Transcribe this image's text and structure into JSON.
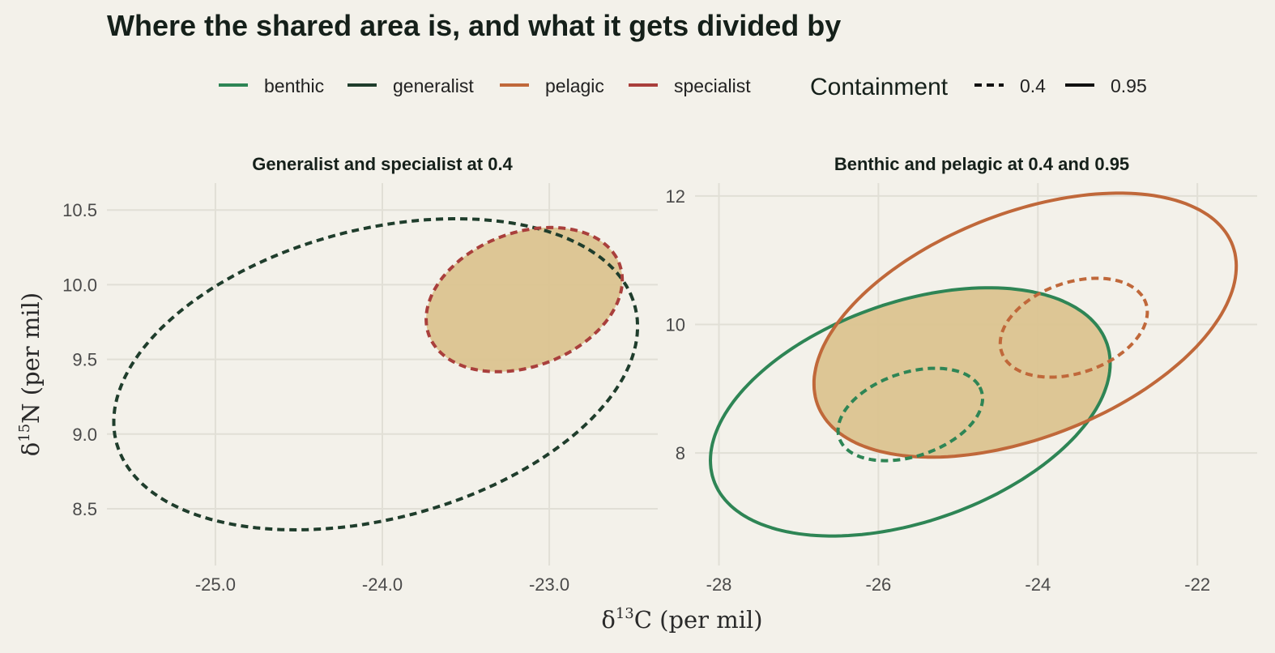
{
  "title": "Where the shared area is, and what it gets divided by",
  "legend": {
    "groups": [
      {
        "label": "benthic",
        "color": "#2e8555"
      },
      {
        "label": "generalist",
        "color": "#1f3d2c"
      },
      {
        "label": "pelagic",
        "color": "#c0683a"
      },
      {
        "label": "specialist",
        "color": "#a93f3c"
      }
    ],
    "containment_title": "Containment",
    "containment": [
      {
        "label": "0.4",
        "style": "dashed"
      },
      {
        "label": "0.95",
        "style": "solid"
      }
    ]
  },
  "x_axis_title": {
    "delta": "δ",
    "sup": "13",
    "rest": "C (per mil)"
  },
  "y_axis_title": {
    "delta": "δ",
    "sup": "15",
    "rest": "N (per mil)"
  },
  "chart_data": [
    {
      "type": "ellipse",
      "title": "Generalist and specialist at 0.4",
      "xlim": [
        -25.65,
        -22.35
      ],
      "ylim": [
        8.12,
        10.68
      ],
      "xticks": [
        -25,
        -24,
        -23
      ],
      "yticks": [
        8.5,
        9.0,
        9.5,
        10.0,
        10.5
      ],
      "tick_decimals": 1,
      "overlap_fill": "#dbc390",
      "ellipses": [
        {
          "group": "generalist",
          "containment": "0.4",
          "center": [
            -24.04,
            9.4
          ],
          "semi_axes": [
            1.62,
            0.96
          ],
          "angle_deg": 18
        },
        {
          "group": "specialist",
          "containment": "0.4",
          "center": [
            -23.15,
            9.9
          ],
          "semi_axes": [
            0.62,
            0.44
          ],
          "angle_deg": 27
        }
      ],
      "overlap": {
        "of": [
          1
        ]
      }
    },
    {
      "type": "ellipse",
      "title": "Benthic and pelagic at 0.4 and 0.95",
      "xlim": [
        -28.3,
        -21.25
      ],
      "ylim": [
        6.25,
        12.2
      ],
      "xticks": [
        -28,
        -26,
        -24,
        -22
      ],
      "yticks": [
        8,
        10,
        12
      ],
      "tick_decimals": 0,
      "overlap_fill": "#dbc390",
      "ellipses": [
        {
          "group": "benthic",
          "containment": "0.95",
          "center": [
            -25.6,
            8.64
          ],
          "semi_axes": [
            2.7,
            1.65
          ],
          "angle_deg": 28
        },
        {
          "group": "pelagic",
          "containment": "0.95",
          "center": [
            -24.16,
            9.99
          ],
          "semi_axes": [
            2.9,
            1.68
          ],
          "angle_deg": 30
        },
        {
          "group": "benthic",
          "containment": "0.4",
          "center": [
            -25.6,
            8.6
          ],
          "semi_axes": [
            0.97,
            0.63
          ],
          "angle_deg": 28
        },
        {
          "group": "pelagic",
          "containment": "0.4",
          "center": [
            -23.55,
            9.95
          ],
          "semi_axes": [
            0.99,
            0.68
          ],
          "angle_deg": 30
        }
      ],
      "overlap": {
        "of": [
          0,
          1
        ]
      }
    }
  ]
}
